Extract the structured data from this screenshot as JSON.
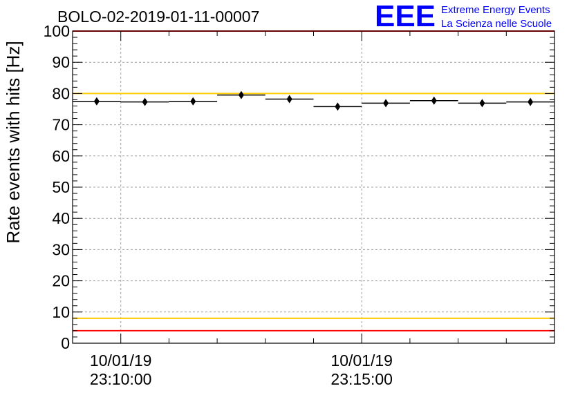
{
  "header": {
    "run_title": "BOLO-02-2019-01-11-00007",
    "logo_text": "EEE",
    "logo_line1": "Extreme Energy Events",
    "logo_line2": "La Scienza nelle Scuole"
  },
  "colors": {
    "logo": "#0000ff",
    "limit_red": "#ff0000",
    "limit_yellow": "#ffcc00",
    "grid": "#a0a0a0",
    "markers": "#000000"
  },
  "chart_data": {
    "type": "scatter",
    "title": "BOLO-02-2019-01-11-00007",
    "xlabel": "",
    "ylabel": "Rate events with hits [Hz]",
    "ylim": [
      0,
      100
    ],
    "y_ticks": [
      0,
      10,
      20,
      30,
      40,
      50,
      60,
      70,
      80,
      90,
      100
    ],
    "xlim_seconds": [
      -60,
      540
    ],
    "x_tick_labels": [
      {
        "date": "10/01/19",
        "time": "23:10:00",
        "t": 0
      },
      {
        "date": "10/01/19",
        "time": "23:15:00",
        "t": 300
      }
    ],
    "grid": true,
    "bin_width_seconds": 60,
    "points": [
      {
        "t": -30,
        "y": 77.5,
        "err": 0.7
      },
      {
        "t": 30,
        "y": 77.3,
        "err": 0.7
      },
      {
        "t": 90,
        "y": 77.5,
        "err": 0.7
      },
      {
        "t": 150,
        "y": 79.5,
        "err": 0.8
      },
      {
        "t": 210,
        "y": 78.2,
        "err": 0.7
      },
      {
        "t": 270,
        "y": 75.8,
        "err": 0.7
      },
      {
        "t": 330,
        "y": 76.9,
        "err": 0.7
      },
      {
        "t": 390,
        "y": 77.7,
        "err": 0.7
      },
      {
        "t": 450,
        "y": 76.9,
        "err": 0.7
      },
      {
        "t": 510,
        "y": 77.3,
        "err": 0.7
      }
    ],
    "reference_lines": [
      {
        "y": 100,
        "color": "#ff0000"
      },
      {
        "y": 80,
        "color": "#ffcc00"
      },
      {
        "y": 8,
        "color": "#ffcc00"
      },
      {
        "y": 4,
        "color": "#ff0000"
      }
    ]
  }
}
